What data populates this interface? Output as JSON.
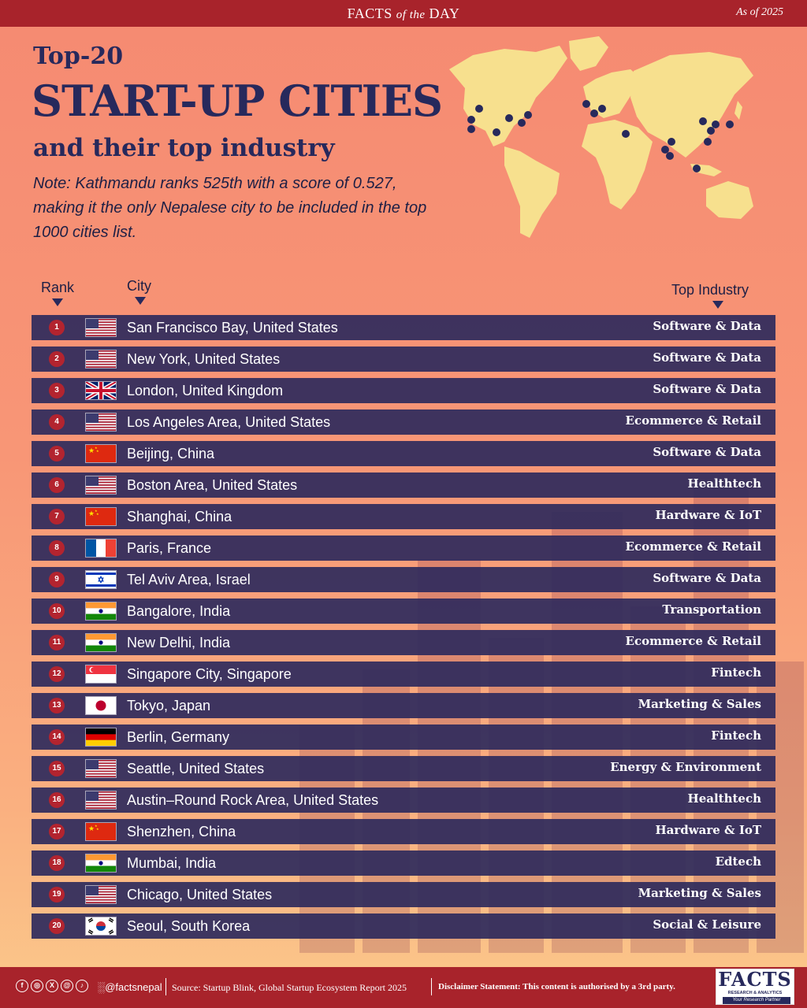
{
  "header": {
    "brand_facts": "FACTS",
    "brand_of_the": "of the",
    "brand_day": "DAY",
    "as_of": "As of 2025"
  },
  "title": {
    "top": "Top-20",
    "main": "START-UP CITIES",
    "sub": "and their top industry",
    "note": "Note: Kathmandu ranks 525th with a score of 0.527, making it the only Nepalese city to be included in the top 1000 cities list."
  },
  "columns": {
    "rank": "Rank",
    "city": "City",
    "industry": "Top Industry"
  },
  "chart_data": {
    "type": "table",
    "columns": [
      "Rank",
      "City",
      "Top Industry"
    ],
    "rows": [
      {
        "rank": "1",
        "flag": "us-flag",
        "city": "San Francisco Bay, United States",
        "industry": "Software & Data"
      },
      {
        "rank": "2",
        "flag": "us-flag",
        "city": "New York, United States",
        "industry": "Software & Data"
      },
      {
        "rank": "3",
        "flag": "uk-flag",
        "city": "London, United Kingdom",
        "industry": "Software & Data"
      },
      {
        "rank": "4",
        "flag": "us-flag",
        "city": "Los Angeles Area, United States",
        "industry": "Ecommerce & Retail"
      },
      {
        "rank": "5",
        "flag": "china-flag",
        "city": "Beijing, China",
        "industry": "Software & Data"
      },
      {
        "rank": "6",
        "flag": "us-flag",
        "city": "Boston Area, United States",
        "industry": "Healthtech"
      },
      {
        "rank": "7",
        "flag": "china-flag",
        "city": "Shanghai, China",
        "industry": "Hardware & IoT"
      },
      {
        "rank": "8",
        "flag": "france-flag",
        "city": "Paris, France",
        "industry": "Ecommerce & Retail"
      },
      {
        "rank": "9",
        "flag": "israel-flag",
        "city": "Tel Aviv Area, Israel",
        "industry": "Software & Data"
      },
      {
        "rank": "10",
        "flag": "india-flag",
        "city": "Bangalore, India",
        "industry": "Transportation"
      },
      {
        "rank": "11",
        "flag": "india-flag",
        "city": "New Delhi, India",
        "industry": "Ecommerce & Retail"
      },
      {
        "rank": "12",
        "flag": "singapore-flag",
        "city": "Singapore City, Singapore",
        "industry": "Fintech"
      },
      {
        "rank": "13",
        "flag": "japan-flag",
        "city": "Tokyo, Japan",
        "industry": "Marketing & Sales"
      },
      {
        "rank": "14",
        "flag": "germany-flag",
        "city": "Berlin, Germany",
        "industry": "Fintech"
      },
      {
        "rank": "15",
        "flag": "us-flag",
        "city": "Seattle, United States",
        "industry": "Energy & Environment"
      },
      {
        "rank": "16",
        "flag": "us-flag",
        "city": "Austin–Round Rock Area, United States",
        "industry": "Healthtech"
      },
      {
        "rank": "17",
        "flag": "china-flag",
        "city": "Shenzhen, China",
        "industry": "Hardware & IoT"
      },
      {
        "rank": "18",
        "flag": "india-flag",
        "city": "Mumbai, India",
        "industry": "Edtech"
      },
      {
        "rank": "19",
        "flag": "us-flag",
        "city": "Chicago, United States",
        "industry": "Marketing & Sales"
      },
      {
        "rank": "20",
        "flag": "south-korea-flag",
        "city": "Seoul, South Korea",
        "industry": "Social & Leisure"
      }
    ]
  },
  "colors": {
    "accent": "#a8232b",
    "row_bg": "#2e2a5c",
    "title": "#27295c",
    "map_land": "#f7e08e",
    "map_dot": "#27295c"
  },
  "footer": {
    "social_icons": [
      "facebook-icon",
      "instagram-icon",
      "x-icon",
      "threads-icon",
      "tiktok-icon"
    ],
    "handle": "@factsnepal",
    "source": "Source: Startup Blink, Global Startup Ecosystem Report 2025",
    "disclaimer": "Disclaimer Statement: This content is authorised by a 3rd party.",
    "logo_main": "FACTS",
    "logo_sub": "RESEARCH & ANALYTICS",
    "logo_tagline": "Your Research Partner"
  }
}
